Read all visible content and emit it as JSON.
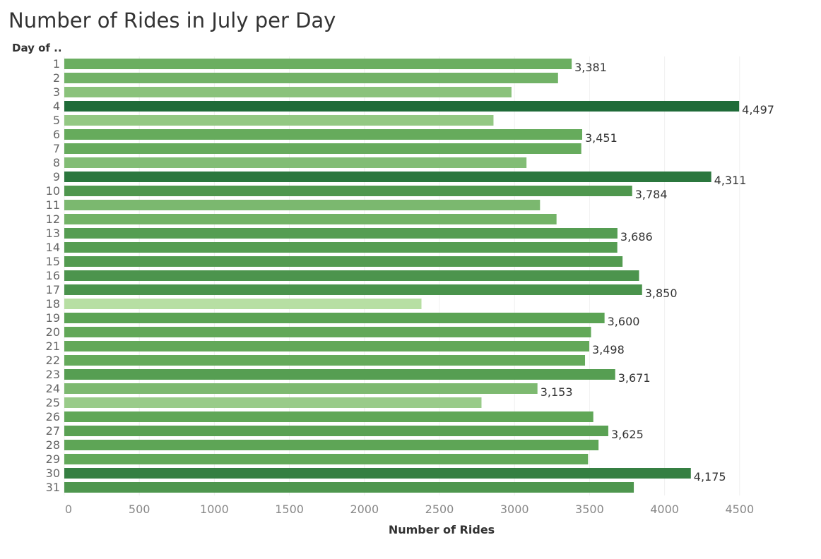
{
  "chart_data": {
    "type": "bar",
    "orientation": "horizontal",
    "title": "Number of Rides in July per Day",
    "ylabel": "Day of ..",
    "xlabel": "Number of Rides",
    "categories": [
      "1",
      "2",
      "3",
      "4",
      "5",
      "6",
      "7",
      "8",
      "9",
      "10",
      "11",
      "12",
      "13",
      "14",
      "15",
      "16",
      "17",
      "18",
      "19",
      "20",
      "21",
      "22",
      "23",
      "24",
      "25",
      "26",
      "27",
      "28",
      "29",
      "30",
      "31"
    ],
    "values": [
      3381,
      3290,
      2980,
      4497,
      2860,
      3451,
      3445,
      3080,
      4311,
      3784,
      3170,
      3280,
      3686,
      3685,
      3720,
      3830,
      3850,
      2380,
      3600,
      3510,
      3498,
      3470,
      3671,
      3153,
      2780,
      3525,
      3625,
      3560,
      3490,
      4175,
      3795
    ],
    "data_labels": {
      "1": "3,381",
      "4": "4,497",
      "6": "3,451",
      "9": "4,311",
      "10": "3,784",
      "13": "3,686",
      "17": "3,850",
      "19": "3,600",
      "21": "3,498",
      "23": "3,671",
      "24": "3,153",
      "27": "3,625",
      "30": "4,175"
    },
    "xticks": [
      "0",
      "500",
      "1000",
      "1500",
      "2000",
      "2500",
      "3000",
      "3500",
      "4000",
      "4500"
    ],
    "xlim": [
      0,
      5000
    ],
    "grid": true,
    "legend": "none",
    "color_scale": {
      "low": "#b7dfa3",
      "mid": "#5fa656",
      "high": "#1f6b38"
    }
  }
}
